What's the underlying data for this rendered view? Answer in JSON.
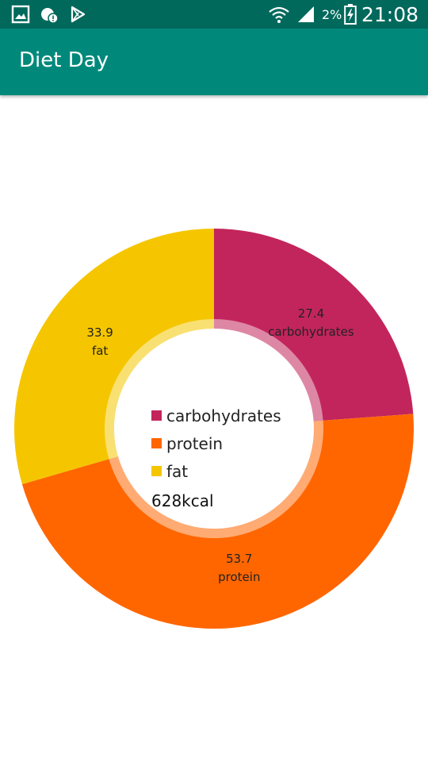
{
  "status_bar": {
    "battery_percent": "2%",
    "time": "21:08",
    "icons": [
      "gallery-icon",
      "cloud-alert-icon",
      "play-store-icon",
      "wifi-icon",
      "signal-icon",
      "battery-charging-icon"
    ]
  },
  "app_bar": {
    "title": "Diet Day",
    "color": "#00897b"
  },
  "chart_data": {
    "type": "pie",
    "style": "donut",
    "series": [
      {
        "name": "carbohydrates",
        "value": 27.4,
        "color": "#c2255c"
      },
      {
        "name": "protein",
        "value": 53.7,
        "color": "#ff6600"
      },
      {
        "name": "fat",
        "value": 33.9,
        "color": "#f5c600"
      }
    ],
    "legend": [
      "carbohydrates",
      "protein",
      "fat"
    ],
    "legend_placement": "center",
    "center_text": "628kcal"
  }
}
